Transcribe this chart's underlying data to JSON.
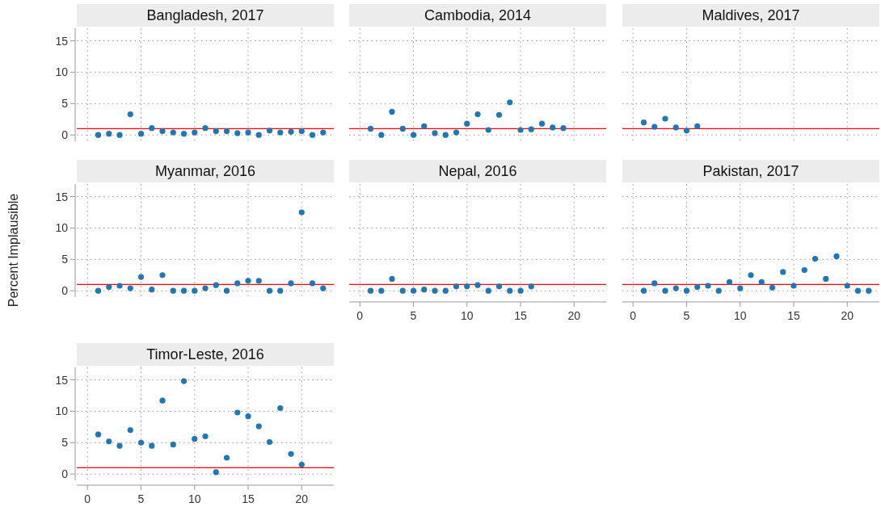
{
  "chart_data": [
    {
      "type": "scatter",
      "title": "Bangladesh, 2017",
      "x": [
        1,
        2,
        3,
        4,
        5,
        6,
        7,
        8,
        9,
        10,
        11,
        12,
        13,
        14,
        15,
        16,
        17,
        18,
        19,
        20,
        21,
        22
      ],
      "values": [
        0,
        0.2,
        0,
        3.3,
        0.2,
        1.1,
        0.6,
        0.4,
        0.2,
        0.4,
        1.1,
        0.6,
        0.6,
        0.3,
        0.4,
        0,
        0.7,
        0.4,
        0.5,
        0.6,
        0,
        0.4
      ],
      "color": "#1f77b4",
      "xlim": [
        -1,
        23
      ],
      "ylim": [
        -1,
        17
      ],
      "yticks": [
        0,
        5,
        10,
        15
      ],
      "xticks": [
        0,
        5,
        10,
        15,
        20
      ],
      "grid": true,
      "marker": "circle",
      "tick_labels": "y",
      "ref_lines": [
        {
          "axis": "y",
          "value": 1,
          "color": "#ff0000"
        }
      ]
    },
    {
      "type": "scatter",
      "title": "Cambodia, 2014",
      "x": [
        1,
        2,
        3,
        4,
        5,
        6,
        7,
        8,
        9,
        10,
        11,
        12,
        13,
        14,
        15,
        16,
        17,
        18,
        19
      ],
      "values": [
        1.0,
        0,
        3.7,
        1.0,
        0,
        1.4,
        0.3,
        0,
        0.4,
        1.8,
        3.3,
        0.8,
        3.2,
        5.2,
        0.8,
        0.9,
        1.8,
        1.2,
        1.1
      ],
      "color": "#1f77b4",
      "xlim": [
        -1,
        23
      ],
      "ylim": [
        -1,
        17
      ],
      "yticks": [
        0,
        5,
        10,
        15
      ],
      "xticks": [
        0,
        5,
        10,
        15,
        20
      ],
      "grid": true,
      "marker": "circle",
      "tick_labels": false,
      "ref_lines": [
        {
          "axis": "y",
          "value": 1,
          "color": "#ff0000"
        }
      ]
    },
    {
      "type": "scatter",
      "title": "Maldives, 2017",
      "x": [
        1,
        2,
        3,
        4,
        5,
        6
      ],
      "values": [
        2.0,
        1.3,
        2.6,
        1.2,
        0.7,
        1.4
      ],
      "color": "#1f77b4",
      "xlim": [
        -1,
        23
      ],
      "ylim": [
        -1,
        17
      ],
      "yticks": [
        0,
        5,
        10,
        15
      ],
      "xticks": [
        0,
        5,
        10,
        15,
        20
      ],
      "grid": true,
      "marker": "circle",
      "tick_labels": false,
      "ref_lines": [
        {
          "axis": "y",
          "value": 1,
          "color": "#ff0000"
        }
      ]
    },
    {
      "type": "scatter",
      "title": "Myanmar, 2016",
      "ylabel": "Percent Implausible",
      "x": [
        1,
        2,
        3,
        4,
        5,
        6,
        7,
        8,
        9,
        10,
        11,
        12,
        13,
        14,
        15,
        16,
        17,
        18,
        19,
        20,
        21,
        22
      ],
      "values": [
        0,
        0.6,
        0.8,
        0.4,
        2.2,
        0.2,
        2.5,
        0,
        0,
        0,
        0.4,
        0.9,
        0,
        1.2,
        1.6,
        1.6,
        0,
        0,
        1.2,
        12.5,
        1.2,
        0.4
      ],
      "color": "#1f77b4",
      "xlim": [
        -1,
        23
      ],
      "ylim": [
        -1,
        17
      ],
      "yticks": [
        0,
        5,
        10,
        15
      ],
      "xticks": [
        0,
        5,
        10,
        15,
        20
      ],
      "grid": true,
      "marker": "circle",
      "tick_labels": "y",
      "ref_lines": [
        {
          "axis": "y",
          "value": 1,
          "color": "#ff0000"
        }
      ]
    },
    {
      "type": "scatter",
      "title": "Nepal, 2016",
      "x": [
        1,
        2,
        3,
        4,
        5,
        6,
        7,
        8,
        9,
        10,
        11,
        12,
        13,
        14,
        15,
        16
      ],
      "values": [
        0,
        0,
        1.9,
        0,
        0,
        0.2,
        0,
        0,
        0.7,
        0.7,
        0.9,
        0,
        0.7,
        0,
        0,
        0.7
      ],
      "color": "#1f77b4",
      "xlim": [
        -1,
        23
      ],
      "ylim": [
        -1,
        17
      ],
      "yticks": [
        0,
        5,
        10,
        15
      ],
      "xticks": [
        0,
        5,
        10,
        15,
        20
      ],
      "grid": true,
      "marker": "circle",
      "tick_labels": "x",
      "ref_lines": [
        {
          "axis": "y",
          "value": 1,
          "color": "#ff0000"
        }
      ]
    },
    {
      "type": "scatter",
      "title": "Pakistan, 2017",
      "x": [
        1,
        2,
        3,
        4,
        5,
        6,
        7,
        8,
        9,
        10,
        11,
        12,
        13,
        14,
        15,
        16,
        17,
        18,
        19,
        20,
        21,
        22
      ],
      "values": [
        0,
        1.2,
        0,
        0.4,
        0,
        0.6,
        0.8,
        0,
        1.4,
        0.4,
        2.5,
        1.4,
        0.5,
        3.0,
        0.8,
        3.3,
        5.1,
        1.9,
        5.5,
        0.8,
        0,
        0
      ],
      "color": "#1f77b4",
      "xlim": [
        -1,
        23
      ],
      "ylim": [
        -1,
        17
      ],
      "yticks": [
        0,
        5,
        10,
        15
      ],
      "xticks": [
        0,
        5,
        10,
        15,
        20
      ],
      "grid": true,
      "marker": "circle",
      "tick_labels": "x",
      "ref_lines": [
        {
          "axis": "y",
          "value": 1,
          "color": "#ff0000"
        }
      ]
    },
    {
      "type": "scatter",
      "title": "Timor-Leste, 2016",
      "x": [
        1,
        2,
        3,
        4,
        5,
        6,
        7,
        8,
        9,
        10,
        11,
        12,
        13,
        14,
        15,
        16,
        17,
        18,
        19,
        20
      ],
      "values": [
        6.3,
        5.2,
        4.5,
        7.0,
        5.0,
        4.5,
        11.7,
        4.7,
        14.8,
        5.6,
        6.0,
        0.3,
        2.6,
        9.8,
        9.2,
        7.6,
        5.1,
        10.5,
        3.2,
        1.5
      ],
      "color": "#1f77b4",
      "xlim": [
        -1,
        23
      ],
      "ylim": [
        -1,
        17
      ],
      "yticks": [
        0,
        5,
        10,
        15
      ],
      "xticks": [
        0,
        5,
        10,
        15,
        20
      ],
      "grid": true,
      "marker": "circle",
      "ref_lines": [
        {
          "axis": "y",
          "value": 1,
          "color": "#ff0000"
        }
      ]
    }
  ]
}
